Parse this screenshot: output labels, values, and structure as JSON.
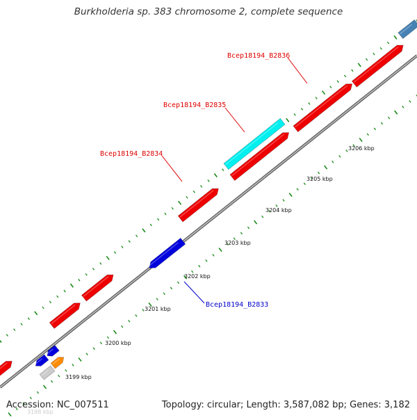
{
  "title": "Burkholderia sp. 383 chromosome 2, complete sequence",
  "accession": "Accession: NC_007511",
  "summary": "Topology: circular; Length: 3,587,082 bp; Genes: 3,182",
  "colors": {
    "background": "#ffffff",
    "backbone": "#888888",
    "tick": "#1a8a1a",
    "forward_gene": "#ee0000",
    "reverse_gene": "#0000dd",
    "highlight_gene": "#00f0f0",
    "other_gene": "#4682b4",
    "orange_gene": "#ff8c00",
    "gray_gene": "#cccccc",
    "label_red": "#dd0000",
    "label_blue": "#0000cc"
  },
  "kbp_labels": [
    {
      "text": "3198 kbp",
      "faded": true
    },
    {
      "text": "3199 kbp"
    },
    {
      "text": "3200 kbp"
    },
    {
      "text": "3201 kbp"
    },
    {
      "text": "3202 kbp"
    },
    {
      "text": "3203 kbp"
    },
    {
      "text": "3204 kbp"
    },
    {
      "text": "3205 kbp"
    },
    {
      "text": "3206 kbp"
    }
  ],
  "gene_labels": [
    {
      "text": "Bcep18194_B2836",
      "color": "red"
    },
    {
      "text": "Bcep18194_B2835",
      "color": "red"
    },
    {
      "text": "Bcep18194_B2834",
      "color": "red"
    },
    {
      "text": "Bcep18194_B2833",
      "color": "blue"
    }
  ]
}
